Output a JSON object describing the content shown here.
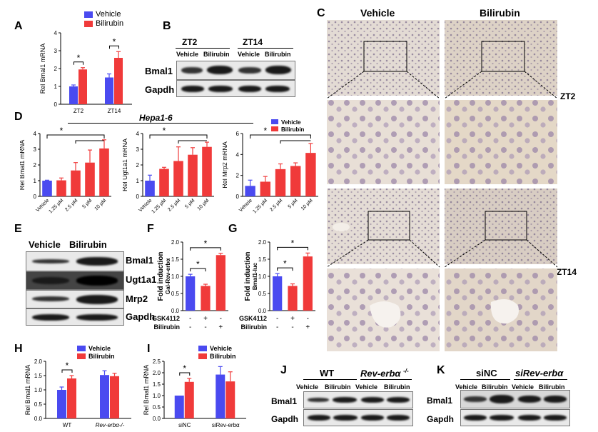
{
  "colors": {
    "vehicle": "#4a4af0",
    "bilirubin": "#f03a3a"
  },
  "panels": {
    "A": "A",
    "B": "B",
    "C": "C",
    "D": "D",
    "E": "E",
    "F": "F",
    "G": "G",
    "H": "H",
    "I": "I",
    "J": "J",
    "K": "K"
  },
  "legend": {
    "vehicle": "Vehicle",
    "bilirubin": "Bilirubin"
  },
  "b": {
    "zt2": "ZT2",
    "zt14": "ZT14",
    "vehicle": "Vehicle",
    "bilirubin": "Bilirubin",
    "bmal1": "Bmal1",
    "gapdh": "Gapdh"
  },
  "c": {
    "vehicle": "Vehicle",
    "bilirubin": "Bilirubin",
    "zt2": "ZT2",
    "zt14": "ZT14"
  },
  "d": {
    "title": "Hepa1-6"
  },
  "e": {
    "vehicle": "Vehicle",
    "bilirubin": "Bilirubin",
    "bands": [
      "Bmal1",
      "Ugt1a1",
      "Mrp2",
      "Gapdh"
    ]
  },
  "j": {
    "wt": "WT",
    "rev": "Rev-erbα",
    "rev_sup": "-/-",
    "vehicle": "Vehicle",
    "bilirubin": "Bilirubin",
    "bmal1": "Bmal1",
    "gapdh": "Gapdh"
  },
  "k": {
    "sinc": "siNC",
    "sirev": "siRev-erbα",
    "vehicle": "Vehicle",
    "bilirubin": "Bilirubin",
    "bmal1": "Bmal1",
    "gapdh": "Gapdh"
  },
  "chart_data": [
    {
      "panel": "A",
      "type": "bar",
      "ylabel": "Rel Bmal1 mRNA",
      "categories": [
        "ZT2",
        "ZT14"
      ],
      "series": [
        {
          "name": "Vehicle",
          "values": [
            1.0,
            1.5
          ],
          "err": [
            0.08,
            0.2
          ]
        },
        {
          "name": "Bilirubin",
          "values": [
            1.95,
            2.6
          ],
          "err": [
            0.1,
            0.35
          ]
        }
      ],
      "ylim": [
        0,
        4
      ],
      "yticks": [
        "0",
        "1",
        "2",
        "3",
        "4"
      ],
      "annotations": [
        "*",
        "*"
      ]
    },
    {
      "panel": "D1",
      "type": "bar",
      "ylabel": "Rel Bmal1 mRNA",
      "categories": [
        "Vehicle",
        "1.25 μM",
        "2.5 μM",
        "5 μM",
        "10 μM"
      ],
      "values": [
        1.0,
        1.02,
        1.65,
        2.15,
        3.05
      ],
      "err": [
        0.03,
        0.15,
        0.5,
        0.8,
        0.55
      ],
      "ylim": [
        0,
        4
      ],
      "yticks": [
        "0",
        "1",
        "2",
        "3",
        "4"
      ],
      "annotations": [
        "*"
      ]
    },
    {
      "panel": "D2",
      "type": "bar",
      "ylabel": "Rel Ugt1a1 mRNA",
      "categories": [
        "Vehicle",
        "1.25 μM",
        "2.5 μM",
        "5 μM",
        "10 μM"
      ],
      "values": [
        1.0,
        1.75,
        2.25,
        2.65,
        3.15
      ],
      "err": [
        0.35,
        0.1,
        0.9,
        0.45,
        0.3
      ],
      "ylim": [
        0,
        4
      ],
      "yticks": [
        "0",
        "1",
        "2",
        "3",
        "4"
      ],
      "annotations": [
        "*"
      ]
    },
    {
      "panel": "D3",
      "type": "bar",
      "ylabel": "Rel Mrp2 mRNA",
      "categories": [
        "Vehicle",
        "1.25 μM",
        "2.5 μM",
        "5 μM",
        "10 μM"
      ],
      "values": [
        1.0,
        1.4,
        2.6,
        2.9,
        4.15
      ],
      "err": [
        0.55,
        0.5,
        0.5,
        0.3,
        0.9
      ],
      "ylim": [
        0,
        6
      ],
      "yticks": [
        "0",
        "2",
        "4",
        "6"
      ],
      "annotations": [
        "*"
      ],
      "legend": [
        "Vehicle",
        "Bilirubin"
      ]
    },
    {
      "panel": "F",
      "type": "bar",
      "ylabel": "Fold induction",
      "ylabel2": "Gal-Rev-erbα",
      "values": [
        1.0,
        0.72,
        1.62
      ],
      "err": [
        0.06,
        0.05,
        0.05
      ],
      "colors": [
        "vehicle",
        "bilirubin",
        "bilirubin"
      ],
      "ylim": [
        0,
        2.0
      ],
      "yticks": [
        "0.0",
        "0.5",
        "1.0",
        "1.5",
        "2.0"
      ],
      "treatments": [
        {
          "name": "GSK4112",
          "values": [
            "-",
            "+",
            "-"
          ]
        },
        {
          "name": "Bilirubin",
          "values": [
            "-",
            "-",
            "+"
          ]
        }
      ],
      "annotations": [
        "*",
        "*"
      ]
    },
    {
      "panel": "G",
      "type": "bar",
      "ylabel": "Fold induction",
      "ylabel2": "Bmal1-luc",
      "values": [
        1.0,
        0.72,
        1.58
      ],
      "err": [
        0.08,
        0.06,
        0.1
      ],
      "colors": [
        "vehicle",
        "bilirubin",
        "bilirubin"
      ],
      "ylim": [
        0,
        2.0
      ],
      "yticks": [
        "0.0",
        "0.5",
        "1.0",
        "1.5",
        "2.0"
      ],
      "treatments": [
        {
          "name": "GSK4112",
          "values": [
            "-",
            "+",
            "-"
          ]
        },
        {
          "name": "Bilirubin",
          "values": [
            "-",
            "-",
            "+"
          ]
        }
      ],
      "annotations": [
        "*",
        "*"
      ]
    },
    {
      "panel": "H",
      "type": "bar",
      "ylabel": "Rel Bmal1 mRNA",
      "categories": [
        "WT",
        "Rev-erbα-/-"
      ],
      "series": [
        {
          "name": "Vehicle",
          "values": [
            1.0,
            1.52
          ],
          "err": [
            0.1,
            0.15
          ]
        },
        {
          "name": "Bilirubin",
          "values": [
            1.4,
            1.48
          ],
          "err": [
            0.1,
            0.1
          ]
        }
      ],
      "ylim": [
        0,
        2.0
      ],
      "yticks": [
        "0.0",
        "0.5",
        "1.0",
        "1.5",
        "2.0"
      ],
      "annotations": [
        "*"
      ]
    },
    {
      "panel": "I",
      "type": "bar",
      "ylabel": "Rel Bmal1 mRNA",
      "categories": [
        "siNC",
        "siRev-erbα"
      ],
      "series": [
        {
          "name": "Vehicle",
          "values": [
            1.0,
            1.92
          ],
          "err": [
            0.0,
            0.35
          ]
        },
        {
          "name": "Bilirubin",
          "values": [
            1.6,
            1.62
          ],
          "err": [
            0.15,
            0.42
          ]
        }
      ],
      "ylim": [
        0,
        2.5
      ],
      "yticks": [
        "0.0",
        "0.5",
        "1.0",
        "1.5",
        "2.0",
        "2.5"
      ],
      "annotations": [
        "*"
      ]
    }
  ]
}
